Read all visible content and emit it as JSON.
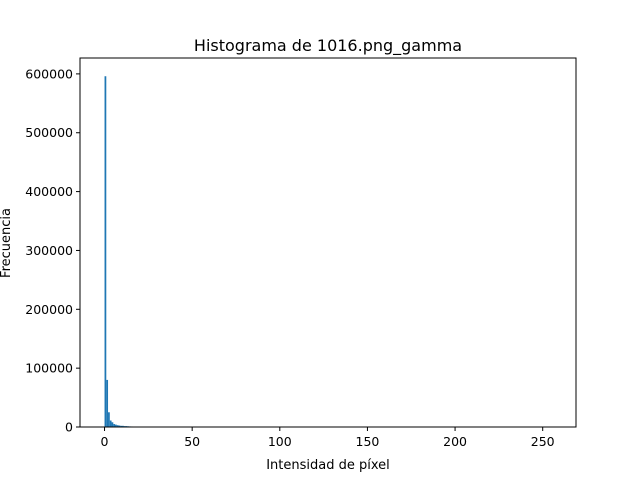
{
  "chart_data": {
    "type": "bar",
    "title": "Histograma de 1016.png_gamma",
    "xlabel": "Intensidad de píxel",
    "ylabel": "Frecuencia",
    "xlim": [
      -14,
      269
    ],
    "ylim": [
      0,
      627000
    ],
    "xticks": [
      0,
      50,
      100,
      150,
      200,
      250
    ],
    "yticks": [
      0,
      100000,
      200000,
      300000,
      400000,
      500000,
      600000
    ],
    "grid": false,
    "bar_color": "#1f77b4",
    "bins": [
      {
        "x": 0,
        "value": 596000
      },
      {
        "x": 1,
        "value": 80000
      },
      {
        "x": 2,
        "value": 25000
      },
      {
        "x": 3,
        "value": 11000
      },
      {
        "x": 4,
        "value": 8000
      },
      {
        "x": 5,
        "value": 5000
      },
      {
        "x": 6,
        "value": 4000
      },
      {
        "x": 7,
        "value": 3000
      },
      {
        "x": 8,
        "value": 2500
      },
      {
        "x": 9,
        "value": 2000
      },
      {
        "x": 10,
        "value": 2000
      },
      {
        "x": 11,
        "value": 1500
      },
      {
        "x": 12,
        "value": 1500
      },
      {
        "x": 13,
        "value": 1200
      },
      {
        "x": 14,
        "value": 1000
      },
      {
        "x": 15,
        "value": 900
      },
      {
        "x": 16,
        "value": 700
      },
      {
        "x": 17,
        "value": 500
      },
      {
        "x": 18,
        "value": 400
      },
      {
        "x": 19,
        "value": 300
      },
      {
        "x": 20,
        "value": 250
      },
      {
        "x": 21,
        "value": 200
      },
      {
        "x": 22,
        "value": 150
      },
      {
        "x": 23,
        "value": 100
      },
      {
        "x": 24,
        "value": 80
      },
      {
        "x": 25,
        "value": 60
      },
      {
        "x": 26,
        "value": 50
      },
      {
        "x": 27,
        "value": 40
      },
      {
        "x": 28,
        "value": 30
      },
      {
        "x": 29,
        "value": 20
      },
      {
        "x": 30,
        "value": 15
      },
      {
        "x": 255,
        "value": 300
      }
    ]
  }
}
